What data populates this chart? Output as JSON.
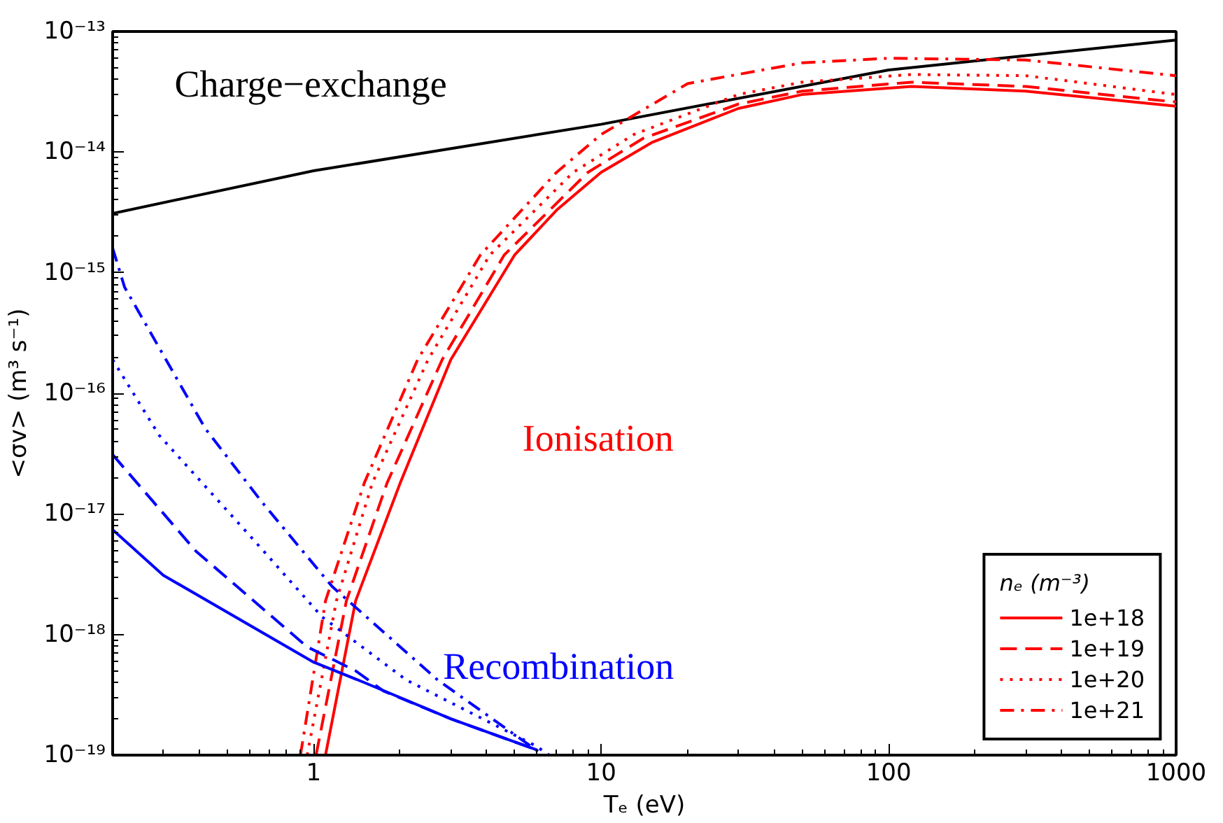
{
  "chart_data": {
    "type": "line",
    "xlabel": "Tₑ (eV)",
    "ylabel": "<σv> (m³ s⁻¹)",
    "legend_title": "nₑ (m⁻³)",
    "log": "xy",
    "grid": false,
    "legend": "bottom right",
    "xlim": [
      0.2,
      1000
    ],
    "xticks": [
      1,
      10,
      100,
      1000
    ],
    "ylim": [
      1e-19,
      1e-13
    ],
    "yticks": [
      {
        "value": 1e-19,
        "label": "10⁻¹⁹"
      },
      {
        "value": 1e-18,
        "label": "10⁻¹⁸"
      },
      {
        "value": 1e-17,
        "label": "10⁻¹⁷"
      },
      {
        "value": 1e-16,
        "label": "10⁻¹⁶"
      },
      {
        "value": 1e-15,
        "label": "10⁻¹⁵"
      },
      {
        "value": 1e-14,
        "label": "10⁻¹⁴"
      },
      {
        "value": 1e-13,
        "label": "10⁻¹³"
      }
    ],
    "series": [
      {
        "color": "#000000",
        "line_style": "solid",
        "x": [
          0.2,
          1,
          10,
          100,
          1000
        ],
        "values": [
          3.1e-15,
          7e-15,
          1.7e-14,
          4.8e-14,
          8.5e-14
        ]
      },
      {
        "name": "1e+18",
        "color": "#ff0000",
        "line_style": "solid",
        "x": [
          1.1,
          1.4,
          2,
          3,
          5,
          7,
          10,
          15,
          30,
          50,
          120,
          300,
          1000
        ],
        "values": [
          1e-19,
          1.9e-18,
          1.8e-17,
          1.9e-16,
          1.4e-15,
          3.3e-15,
          6.8e-15,
          1.2e-14,
          2.3e-14,
          3e-14,
          3.5e-14,
          3.2e-14,
          2.4e-14
        ]
      },
      {
        "name": "1e+19",
        "color": "#ff0000",
        "line_style": "dashed",
        "x": [
          1.02,
          1.3,
          1.8,
          2.8,
          4.6,
          9,
          14,
          30,
          50,
          120,
          300,
          1000
        ],
        "values": [
          1e-19,
          1.9e-18,
          1.8e-17,
          1.9e-16,
          1.4e-15,
          6.8e-15,
          1.3e-14,
          2.5e-14,
          3.2e-14,
          3.8e-14,
          3.5e-14,
          2.6e-14
        ]
      },
      {
        "name": "1e+20",
        "color": "#ff0000",
        "line_style": "dotted",
        "x": [
          0.95,
          1.2,
          1.6,
          2.5,
          4.1,
          8,
          13,
          30,
          50,
          120,
          300,
          1000
        ],
        "values": [
          1e-19,
          1.9e-18,
          1.8e-17,
          1.9e-16,
          1.4e-15,
          6.8e-15,
          1.4e-14,
          3e-14,
          3.8e-14,
          4.4e-14,
          4.3e-14,
          3e-14
        ]
      },
      {
        "name": "1e+21",
        "color": "#ff0000",
        "line_style": "dashdot",
        "x": [
          0.9,
          1.1,
          1.5,
          2.3,
          3.8,
          7,
          10,
          20,
          50,
          100,
          300,
          1000
        ],
        "values": [
          1e-19,
          1.9e-18,
          1.8e-17,
          1.9e-16,
          1.4e-15,
          6.8e-15,
          1.4e-14,
          3.7e-14,
          5.5e-14,
          6e-14,
          5.8e-14,
          4.3e-14
        ]
      },
      {
        "color": "#0000ff",
        "line_style": "solid",
        "x": [
          0.2,
          0.3,
          1,
          1.5,
          3,
          6
        ],
        "values": [
          7.4e-18,
          3.1e-18,
          5.9e-19,
          4e-19,
          2e-19,
          1.1e-19
        ]
      },
      {
        "color": "#0000ff",
        "line_style": "dashed",
        "x": [
          0.2,
          0.39,
          0.95,
          1.4,
          1.75,
          3,
          6
        ],
        "values": [
          3.1e-17,
          4.9e-18,
          7.9e-19,
          5e-19,
          3.4e-19,
          2e-19,
          1.1e-19
        ]
      },
      {
        "color": "#0000ff",
        "line_style": "dotted",
        "x": [
          0.2,
          0.29,
          0.63,
          1.07,
          2.1,
          5.9,
          6.6
        ],
        "values": [
          1.9e-16,
          4.5e-17,
          5.8e-18,
          1.4e-18,
          4.2e-19,
          1.2e-19,
          1e-19
        ]
      },
      {
        "color": "#0000ff",
        "line_style": "dashdot",
        "x": [
          0.2,
          0.22,
          0.42,
          0.66,
          1.16,
          2.7,
          6.3
        ],
        "values": [
          1.6e-15,
          7.6e-16,
          5.1e-17,
          1.26e-17,
          2.5e-18,
          4.2e-19,
          1e-19
        ]
      }
    ],
    "annotations": [
      "Charge−exchange",
      "Ionisation",
      "Recombination"
    ]
  }
}
